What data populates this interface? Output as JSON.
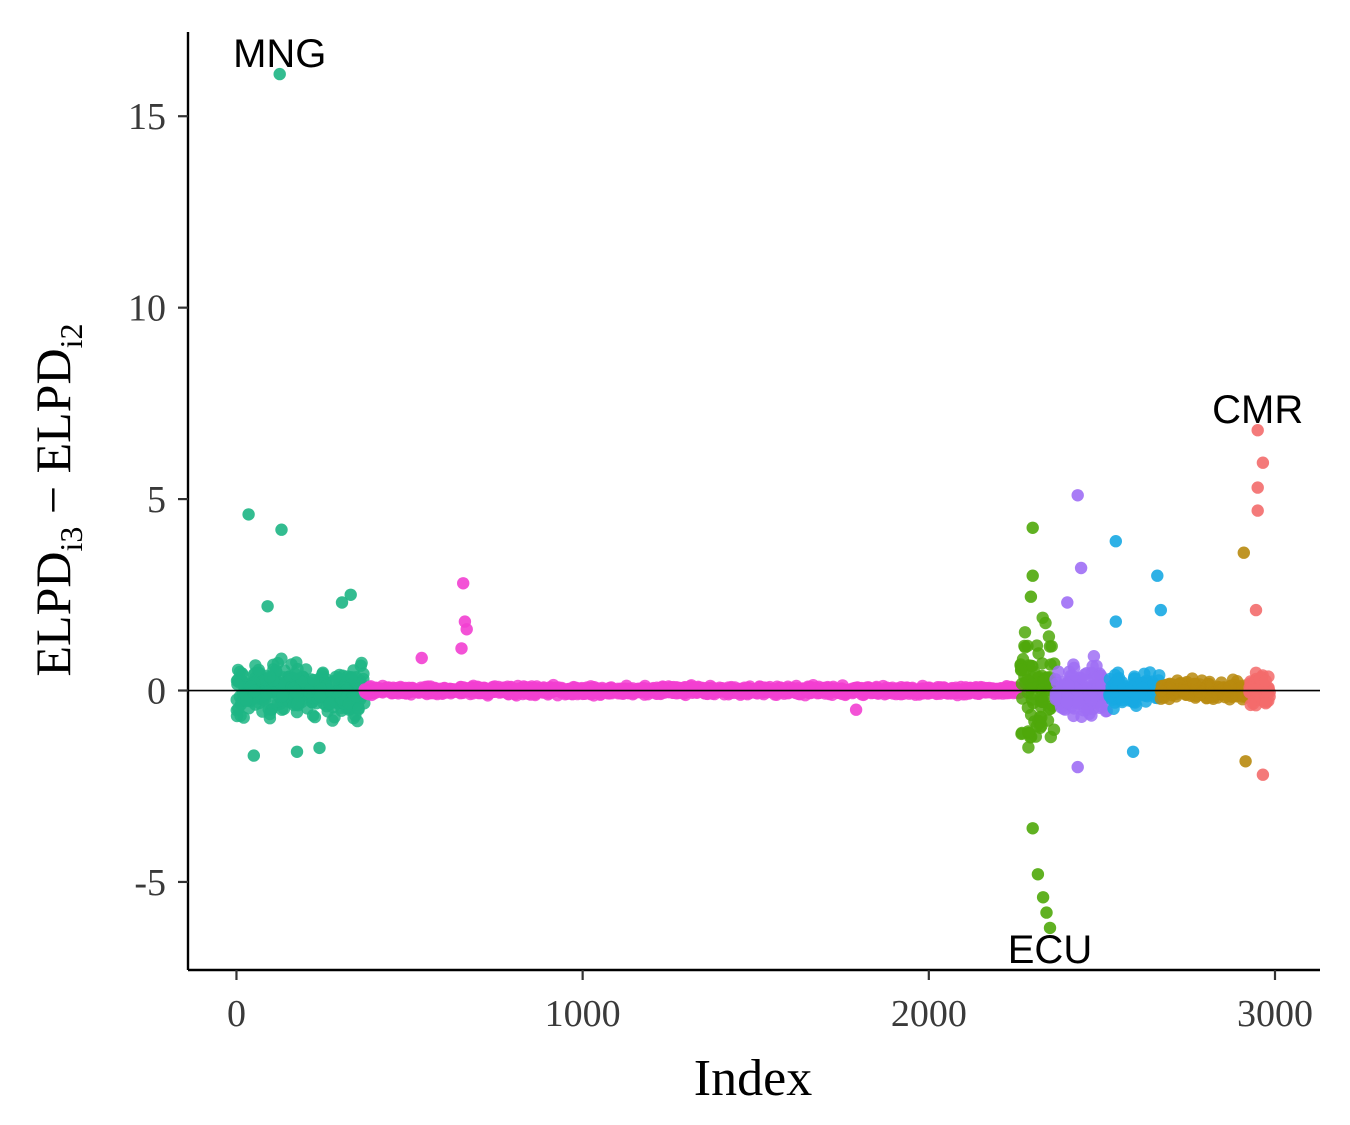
{
  "chart_data": {
    "type": "scatter",
    "title": "",
    "xlabel": "Index",
    "ylabel": {
      "main_a": "ELPD",
      "sub_a": "i3",
      "separator": " − ",
      "main_b": "ELPD",
      "sub_b": "i2"
    },
    "xlim": [
      -140,
      3130
    ],
    "ylim": [
      -7.3,
      17.2
    ],
    "x_ticks": [
      0,
      1000,
      2000,
      3000
    ],
    "x_tick_labels": [
      "0",
      "1000",
      "2000",
      "3000"
    ],
    "y_ticks": [
      -5,
      0,
      5,
      10,
      15
    ],
    "y_tick_labels": [
      "-5",
      "0",
      "5",
      "10",
      "15"
    ],
    "reference_line_y": 0,
    "grid": false,
    "legend": "none",
    "groups": [
      {
        "name": "MNG",
        "color": "#1db584",
        "x_range": [
          0,
          370
        ],
        "spread": 0.45
      },
      {
        "name": "group-pink",
        "color": "#f23fd1",
        "x_range": [
          370,
          2265
        ],
        "spread": 0.07
      },
      {
        "name": "ECU",
        "color": "#4fa80a",
        "x_range": [
          2265,
          2365
        ],
        "spread": 1.0
      },
      {
        "name": "group-purple",
        "color": "#9f6ef5",
        "x_range": [
          2365,
          2520
        ],
        "spread": 0.45
      },
      {
        "name": "group-blue",
        "color": "#17a9e3",
        "x_range": [
          2520,
          2670
        ],
        "spread": 0.3
      },
      {
        "name": "group-gold",
        "color": "#b88a0e",
        "x_range": [
          2670,
          2925
        ],
        "spread": 0.15
      },
      {
        "name": "CMR",
        "color": "#f36b6b",
        "x_range": [
          2925,
          2985
        ],
        "spread": 0.3
      }
    ],
    "notable_points": [
      {
        "group": "MNG",
        "x": 125,
        "y": 16.1
      },
      {
        "group": "MNG",
        "x": 35,
        "y": 4.6
      },
      {
        "group": "MNG",
        "x": 130,
        "y": 4.2
      },
      {
        "group": "MNG",
        "x": 330,
        "y": 2.5
      },
      {
        "group": "MNG",
        "x": 305,
        "y": 2.3
      },
      {
        "group": "MNG",
        "x": 90,
        "y": 2.2
      },
      {
        "group": "MNG",
        "x": 50,
        "y": -1.7
      },
      {
        "group": "MNG",
        "x": 175,
        "y": -1.6
      },
      {
        "group": "MNG",
        "x": 240,
        "y": -1.5
      },
      {
        "group": "group-pink",
        "x": 655,
        "y": 2.8
      },
      {
        "group": "group-pink",
        "x": 660,
        "y": 1.8
      },
      {
        "group": "group-pink",
        "x": 665,
        "y": 1.6
      },
      {
        "group": "group-pink",
        "x": 650,
        "y": 1.1
      },
      {
        "group": "group-pink",
        "x": 535,
        "y": 0.85
      },
      {
        "group": "group-pink",
        "x": 1790,
        "y": -0.5
      },
      {
        "group": "ECU",
        "x": 2350,
        "y": -6.2
      },
      {
        "group": "ECU",
        "x": 2340,
        "y": -5.8
      },
      {
        "group": "ECU",
        "x": 2330,
        "y": -5.4
      },
      {
        "group": "ECU",
        "x": 2315,
        "y": -4.8
      },
      {
        "group": "ECU",
        "x": 2300,
        "y": -3.6
      },
      {
        "group": "ECU",
        "x": 2300,
        "y": 4.25
      },
      {
        "group": "ECU",
        "x": 2300,
        "y": 3.0
      },
      {
        "group": "ECU",
        "x": 2295,
        "y": 2.45
      },
      {
        "group": "group-purple",
        "x": 2430,
        "y": 5.1
      },
      {
        "group": "group-purple",
        "x": 2440,
        "y": 3.2
      },
      {
        "group": "group-purple",
        "x": 2400,
        "y": 2.3
      },
      {
        "group": "group-purple",
        "x": 2430,
        "y": -2.0
      },
      {
        "group": "group-blue",
        "x": 2540,
        "y": 3.9
      },
      {
        "group": "group-blue",
        "x": 2660,
        "y": 3.0
      },
      {
        "group": "group-blue",
        "x": 2670,
        "y": 2.1
      },
      {
        "group": "group-blue",
        "x": 2540,
        "y": 1.8
      },
      {
        "group": "group-blue",
        "x": 2590,
        "y": -1.6
      },
      {
        "group": "group-gold",
        "x": 2910,
        "y": 3.6
      },
      {
        "group": "group-gold",
        "x": 2915,
        "y": -1.85
      },
      {
        "group": "CMR",
        "x": 2950,
        "y": 6.8
      },
      {
        "group": "CMR",
        "x": 2965,
        "y": 5.95
      },
      {
        "group": "CMR",
        "x": 2950,
        "y": 5.3
      },
      {
        "group": "CMR",
        "x": 2950,
        "y": 4.7
      },
      {
        "group": "CMR",
        "x": 2945,
        "y": 2.1
      },
      {
        "group": "CMR",
        "x": 2965,
        "y": -2.2
      }
    ],
    "annotations": [
      {
        "text": "MNG",
        "x": 125,
        "y": 16.1,
        "anchor": "middle",
        "dy": 0.55
      },
      {
        "text": "CMR",
        "x": 2950,
        "y": 6.8,
        "anchor": "middle",
        "dy": 0.55
      },
      {
        "text": "ECU",
        "x": 2350,
        "y": -6.2,
        "anchor": "middle",
        "dy": -0.55
      }
    ]
  }
}
